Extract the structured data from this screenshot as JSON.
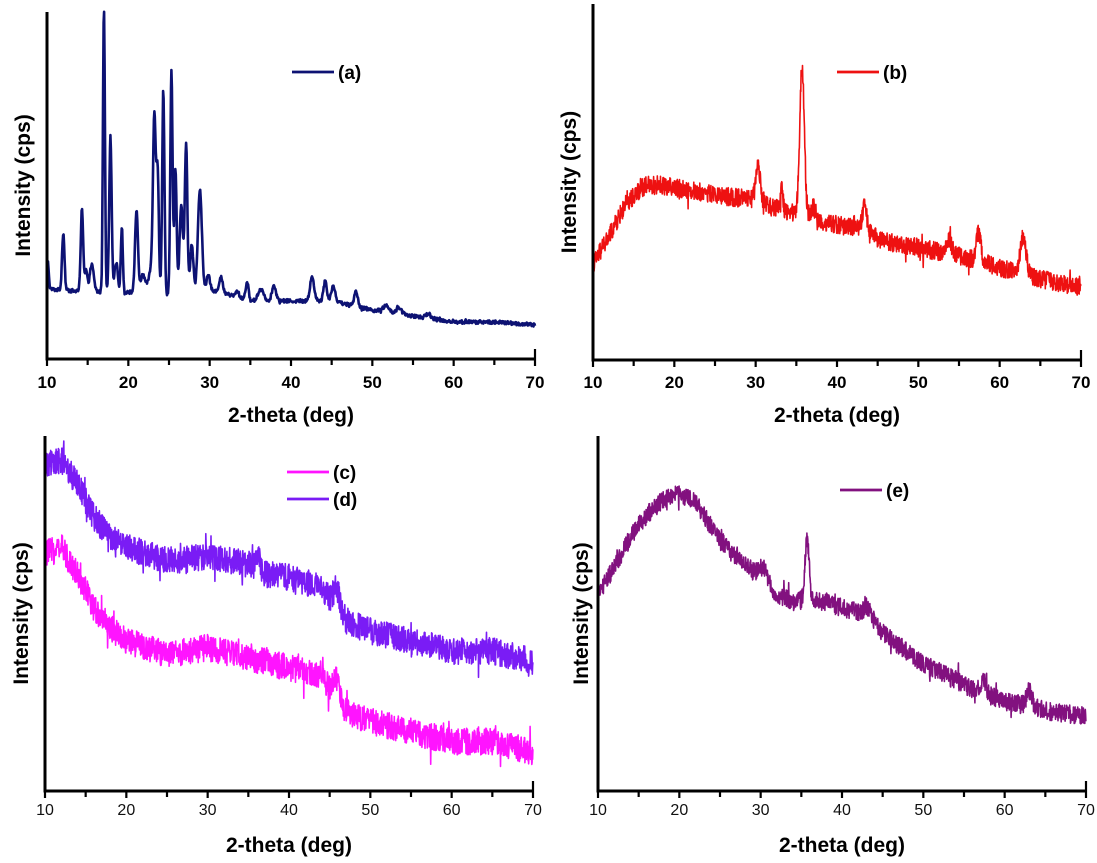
{
  "chart_data": [
    {
      "id": "a",
      "type": "line",
      "xlabel": "2-theta (deg)",
      "ylabel": "Intensity (cps)",
      "xlim": [
        10,
        70
      ],
      "ylim": [
        0,
        100
      ],
      "x_ticks": [
        10,
        20,
        30,
        40,
        50,
        60,
        70
      ],
      "tick_label_style": "bold",
      "legend": {
        "position": "top-center-right",
        "entries": [
          {
            "label": "(a)",
            "color": "#0d1273"
          }
        ]
      },
      "series": [
        {
          "name": "(a)",
          "color": "#0d1273",
          "noise": 0.6,
          "background": [
            [
              10,
              17
            ],
            [
              15,
              16
            ],
            [
              20,
              16
            ],
            [
              25,
              15
            ],
            [
              29,
              15
            ],
            [
              30,
              17
            ],
            [
              35,
              13
            ],
            [
              40,
              13
            ],
            [
              45,
              13
            ],
            [
              50,
              10
            ],
            [
              55,
              8
            ],
            [
              60,
              6
            ],
            [
              65,
              6
            ],
            [
              70,
              5
            ]
          ],
          "peaks": [
            [
              10.1,
              9,
              0.12
            ],
            [
              12.0,
              19,
              0.15
            ],
            [
              14.3,
              28,
              0.15
            ],
            [
              14.8,
              7,
              0.15
            ],
            [
              15.5,
              9,
              0.25
            ],
            [
              17.0,
              95,
              0.12
            ],
            [
              17.8,
              52,
              0.15
            ],
            [
              18.5,
              10,
              0.2
            ],
            [
              19.2,
              22,
              0.12
            ],
            [
              21.0,
              27,
              0.18
            ],
            [
              21.8,
              6,
              0.3
            ],
            [
              22.8,
              8,
              0.3
            ],
            [
              23.2,
              57,
              0.17
            ],
            [
              23.6,
              40,
              0.15
            ],
            [
              24.3,
              68,
              0.14
            ],
            [
              25.3,
              75,
              0.14
            ],
            [
              25.8,
              42,
              0.14
            ],
            [
              26.5,
              30,
              0.2
            ],
            [
              27.1,
              50,
              0.16
            ],
            [
              27.8,
              17,
              0.2
            ],
            [
              28.8,
              35,
              0.25
            ],
            [
              29.8,
              5,
              0.2
            ],
            [
              31.4,
              5,
              0.2
            ],
            [
              33.4,
              2,
              0.2
            ],
            [
              34.6,
              6,
              0.18
            ],
            [
              36.3,
              4,
              0.35
            ],
            [
              37.9,
              5,
              0.25
            ],
            [
              42.6,
              8,
              0.25
            ],
            [
              44.2,
              7,
              0.2
            ],
            [
              45.2,
              5,
              0.25
            ],
            [
              48.0,
              5,
              0.22
            ],
            [
              51.7,
              2,
              0.4
            ],
            [
              53.3,
              2,
              0.3
            ],
            [
              56.9,
              1.5,
              0.3
            ]
          ]
        }
      ]
    },
    {
      "id": "b",
      "type": "line",
      "xlabel": "2-theta (deg)",
      "ylabel": "Intensity (cps)",
      "xlim": [
        10,
        70
      ],
      "ylim": [
        0,
        100
      ],
      "x_ticks": [
        10,
        20,
        30,
        40,
        50,
        60,
        70
      ],
      "tick_label_style": "bold",
      "legend": {
        "position": "top-center-right",
        "entries": [
          {
            "label": "(b)",
            "color": "#ee1111"
          }
        ]
      },
      "series": [
        {
          "name": "(b)",
          "color": "#ee1111",
          "noise": 3.2,
          "background": [
            [
              10,
              23
            ],
            [
              12,
              33
            ],
            [
              14,
              44
            ],
            [
              16,
              50
            ],
            [
              18,
              51
            ],
            [
              22,
              49
            ],
            [
              26,
              47
            ],
            [
              29,
              46
            ],
            [
              32,
              43
            ],
            [
              35,
              41
            ],
            [
              38,
              38
            ],
            [
              42,
              36
            ],
            [
              46,
              31
            ],
            [
              50,
              29
            ],
            [
              55,
              26
            ],
            [
              60,
              22
            ],
            [
              65,
              18
            ],
            [
              70,
              15
            ]
          ],
          "peaks": [
            [
              30.3,
              12,
              0.3
            ],
            [
              33.2,
              8,
              0.15
            ],
            [
              35.7,
              52,
              0.28
            ],
            [
              37.1,
              4,
              0.3
            ],
            [
              43.4,
              9,
              0.3
            ],
            [
              53.8,
              5,
              0.3
            ],
            [
              57.4,
              10,
              0.3
            ],
            [
              62.9,
              13,
              0.35
            ]
          ]
        }
      ]
    },
    {
      "id": "cd",
      "type": "line",
      "xlabel": "2-theta (deg)",
      "ylabel": "Intensity (cps)",
      "xlim": [
        10,
        70
      ],
      "ylim": [
        0,
        100
      ],
      "x_ticks": [
        10,
        20,
        30,
        40,
        50,
        60,
        70
      ],
      "tick_label_style": "plain",
      "legend": {
        "position": "top-center-right",
        "entries": [
          {
            "label": "(c)",
            "color": "#ff14ff"
          },
          {
            "label": "(d)",
            "color": "#7a1cf5"
          }
        ]
      },
      "series": [
        {
          "name": "(c)",
          "color": "#ff14ff",
          "noise": 4.0,
          "background": [
            [
              10,
              66
            ],
            [
              12,
              68
            ],
            [
              14,
              60
            ],
            [
              16,
              50
            ],
            [
              18,
              44
            ],
            [
              20,
              40
            ],
            [
              25,
              36
            ],
            [
              30,
              38
            ],
            [
              35,
              35
            ],
            [
              40,
              32
            ],
            [
              44,
              30
            ],
            [
              45,
              26
            ],
            [
              46,
              25
            ],
            [
              47,
              19
            ],
            [
              50,
              16
            ],
            [
              55,
              13
            ],
            [
              60,
              10
            ],
            [
              65,
              10
            ],
            [
              70,
              7
            ]
          ],
          "peaks": [
            [
              45.8,
              4,
              0.3
            ],
            [
              35.3,
              1,
              0.2
            ]
          ]
        },
        {
          "name": "(d)",
          "color": "#7a1cf5",
          "noise": 4.0,
          "background": [
            [
              10,
              93
            ],
            [
              12,
              94
            ],
            [
              14,
              87
            ],
            [
              16,
              77
            ],
            [
              18,
              71
            ],
            [
              20,
              68
            ],
            [
              25,
              64
            ],
            [
              30,
              65
            ],
            [
              35,
              63
            ],
            [
              37,
              60
            ],
            [
              40,
              59
            ],
            [
              44,
              56
            ],
            [
              45,
              53
            ],
            [
              46,
              52
            ],
            [
              47,
              46
            ],
            [
              50,
              43
            ],
            [
              55,
              40
            ],
            [
              60,
              37
            ],
            [
              65,
              37
            ],
            [
              70,
              34
            ]
          ],
          "peaks": [
            [
              36.2,
              6,
              0.2
            ],
            [
              45.8,
              4,
              0.3
            ]
          ]
        }
      ]
    },
    {
      "id": "e",
      "type": "line",
      "xlabel": "2-theta (deg)",
      "ylabel": "Intensity (cps)",
      "xlim": [
        10,
        70
      ],
      "ylim": [
        0,
        100
      ],
      "x_ticks": [
        10,
        20,
        30,
        40,
        50,
        60,
        70
      ],
      "tick_label_style": "plain",
      "legend": {
        "position": "top-center-right",
        "entries": [
          {
            "label": "(e)",
            "color": "#82117f"
          }
        ]
      },
      "series": [
        {
          "name": "(e)",
          "color": "#82117f",
          "noise": 3.0,
          "background": [
            [
              10,
              54
            ],
            [
              12,
              62
            ],
            [
              14,
              72
            ],
            [
              16,
              79
            ],
            [
              18,
              84
            ],
            [
              20,
              86
            ],
            [
              22,
              83
            ],
            [
              24,
              75
            ],
            [
              26,
              68
            ],
            [
              28,
              63
            ],
            [
              30,
              59
            ],
            [
              32,
              53
            ],
            [
              34,
              51
            ],
            [
              36,
              52
            ],
            [
              38,
              51
            ],
            [
              40,
              49
            ],
            [
              42,
              48
            ],
            [
              43.5,
              46
            ],
            [
              45,
              41
            ],
            [
              48,
              35
            ],
            [
              50,
              31
            ],
            [
              53,
              27
            ],
            [
              56,
              23
            ],
            [
              60,
              19
            ],
            [
              65,
              16
            ],
            [
              70,
              14
            ]
          ],
          "peaks": [
            [
              30.4,
              4,
              0.5
            ],
            [
              35.7,
              20,
              0.25
            ],
            [
              43.2,
              3,
              0.4
            ],
            [
              57.4,
              4,
              0.3
            ],
            [
              63.0,
              5,
              0.35
            ]
          ]
        }
      ]
    }
  ]
}
